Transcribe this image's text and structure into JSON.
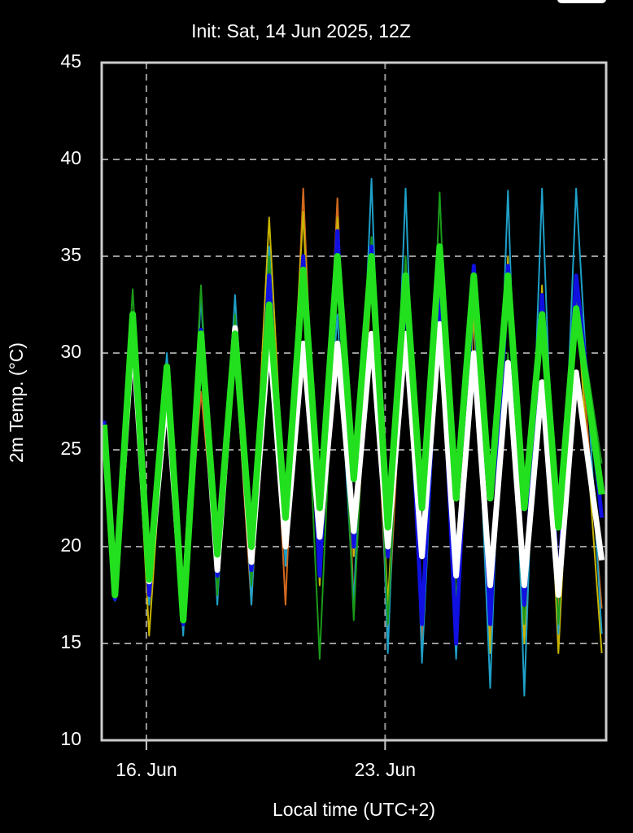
{
  "chart_data": {
    "type": "line",
    "title": "Init: Sat, 14 Jun 2025, 12Z",
    "y_label": "2m Temp. (°C)",
    "x_label": "Local time (UTC+2)",
    "x": [
      14.76,
      15.08,
      15.6,
      16.08,
      16.6,
      17.08,
      17.6,
      18.08,
      18.6,
      19.08,
      19.6,
      20.08,
      20.6,
      21.08,
      21.6,
      22.08,
      22.6,
      23.08,
      23.6,
      24.08,
      24.6,
      25.08,
      25.6,
      26.08,
      26.6,
      27.08,
      27.6,
      28.08,
      28.6,
      29.35
    ],
    "xlim": [
      14.69,
      29.48
    ],
    "xticks": [
      {
        "value": 16,
        "label": "16. Jun"
      },
      {
        "value": 23,
        "label": "23. Jun"
      }
    ],
    "ylim": [
      10,
      45
    ],
    "yticks": [
      10,
      15,
      20,
      25,
      30,
      35,
      40,
      45
    ],
    "grid": true,
    "series": [
      {
        "color": "#d2691e",
        "width": 2,
        "values": [
          26,
          17.5,
          32,
          17,
          28.5,
          16.5,
          28,
          19,
          30,
          17,
          34,
          17,
          38.5,
          18.5,
          38,
          17,
          34,
          15.5,
          33,
          15,
          33,
          14.5,
          32,
          15.5,
          34.5,
          17,
          33,
          16.8,
          33.5,
          16.8
        ]
      },
      {
        "color": "#c8b400",
        "width": 2,
        "values": [
          26.2,
          17.7,
          31.5,
          15.4,
          29,
          16,
          30,
          18.5,
          31.5,
          19,
          37,
          21,
          37.3,
          18,
          37,
          19.5,
          35,
          17,
          34,
          16,
          33,
          15.5,
          32,
          14.5,
          35,
          15,
          33.5,
          14.5,
          33,
          14.5
        ]
      },
      {
        "color": "#1ea0c8",
        "width": 2,
        "values": [
          26.3,
          17.2,
          32,
          17,
          30,
          15.4,
          33,
          17,
          33,
          17,
          35.5,
          19,
          33,
          19,
          32,
          17,
          39,
          14.5,
          38.5,
          14,
          33,
          14.2,
          33,
          12.7,
          38.4,
          12.3,
          38.5,
          15.5,
          38.5,
          15.5
        ]
      },
      {
        "color": "#1a9a1a",
        "width": 2,
        "values": [
          26,
          17.5,
          33.3,
          18,
          29,
          16,
          33.5,
          17.5,
          32,
          18,
          35,
          20,
          33,
          14.2,
          35,
          16.2,
          36,
          16,
          35,
          16,
          38.3,
          17,
          33,
          16,
          30,
          16,
          33,
          16,
          33,
          24.3
        ]
      },
      {
        "color": "#1010e0",
        "width": 5,
        "values": [
          26.5,
          17.3,
          31.5,
          17.5,
          29,
          16,
          31.2,
          18.5,
          31,
          18.8,
          34,
          20,
          35,
          18.5,
          36.3,
          20,
          35.5,
          19.5,
          33.5,
          16,
          33.5,
          15,
          34.5,
          16,
          34.5,
          17,
          33,
          17.5,
          34,
          21.5
        ]
      },
      {
        "color": "#ffffff",
        "width": 7,
        "values": [
          26,
          17.8,
          31,
          18.2,
          28,
          16.5,
          31,
          18.8,
          31.3,
          19.2,
          31,
          20,
          30.5,
          20.5,
          30.5,
          20.8,
          31,
          20,
          31,
          19.5,
          31.5,
          18.5,
          30,
          18,
          29.5,
          18,
          28.5,
          17.5,
          29,
          19.3
        ]
      },
      {
        "color": "#22e01e",
        "width": 8,
        "values": [
          26.3,
          17.5,
          32,
          18.3,
          29.3,
          16.2,
          31,
          19.6,
          31,
          20,
          32.5,
          21.5,
          34.3,
          22,
          35,
          23.5,
          35,
          21,
          34,
          22,
          35.5,
          22.5,
          34,
          22.5,
          34,
          22,
          32,
          21,
          32.3,
          22.7
        ]
      }
    ]
  }
}
